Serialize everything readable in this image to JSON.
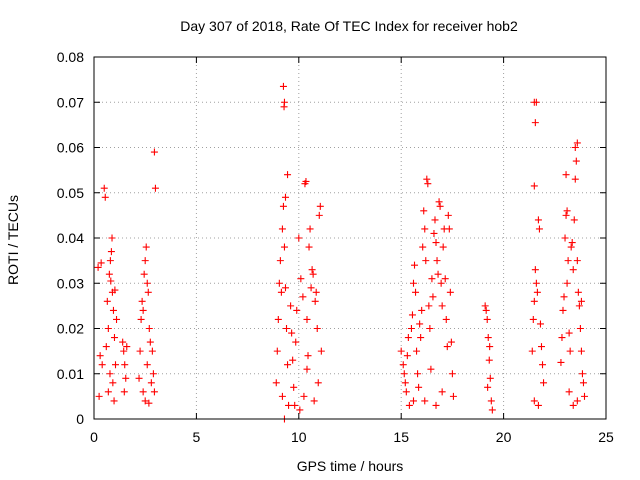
{
  "chart_data": {
    "type": "scatter",
    "title": "Day 307 of 2018, Rate Of TEC Index for receiver hob2",
    "xlabel": "GPS time / hours",
    "ylabel": "ROTI / TECUs",
    "xlim": [
      0,
      25
    ],
    "ylim": [
      0,
      0.08
    ],
    "x_ticks": [
      "0",
      "5",
      "10",
      "15",
      "20",
      "25"
    ],
    "x_tick_values": [
      0,
      5,
      10,
      15,
      20,
      25
    ],
    "y_ticks": [
      "0",
      "0.01",
      "0.02",
      "0.03",
      "0.04",
      "0.05",
      "0.06",
      "0.07",
      "0.08"
    ],
    "y_tick_values": [
      0,
      0.01,
      0.02,
      0.03,
      0.04,
      0.05,
      0.06,
      0.07,
      0.08
    ],
    "grid": true,
    "marker": "+",
    "color": "#ff0000",
    "series": [
      {
        "name": "ROTI",
        "points": [
          [
            0.2,
            0.0335
          ],
          [
            0.35,
            0.0345
          ],
          [
            0.25,
            0.005
          ],
          [
            0.3,
            0.014
          ],
          [
            0.4,
            0.012
          ],
          [
            0.5,
            0.051
          ],
          [
            0.55,
            0.049
          ],
          [
            0.65,
            0.026
          ],
          [
            0.7,
            0.02
          ],
          [
            0.6,
            0.016
          ],
          [
            0.7,
            0.006
          ],
          [
            0.75,
            0.032
          ],
          [
            0.8,
            0.035
          ],
          [
            0.85,
            0.037
          ],
          [
            0.88,
            0.04
          ],
          [
            0.9,
            0.028
          ],
          [
            0.95,
            0.024
          ],
          [
            1.0,
            0.018
          ],
          [
            1.05,
            0.012
          ],
          [
            0.92,
            0.008
          ],
          [
            0.98,
            0.004
          ],
          [
            1.1,
            0.022
          ],
          [
            0.82,
            0.0305
          ],
          [
            1.02,
            0.0285
          ],
          [
            0.78,
            0.01
          ],
          [
            1.4,
            0.017
          ],
          [
            1.45,
            0.015
          ],
          [
            1.5,
            0.012
          ],
          [
            1.55,
            0.009
          ],
          [
            1.6,
            0.016
          ],
          [
            1.48,
            0.006
          ],
          [
            2.2,
            0.009
          ],
          [
            2.25,
            0.015
          ],
          [
            2.3,
            0.022
          ],
          [
            2.35,
            0.026
          ],
          [
            2.4,
            0.024
          ],
          [
            2.45,
            0.032
          ],
          [
            2.5,
            0.035
          ],
          [
            2.55,
            0.038
          ],
          [
            2.6,
            0.03
          ],
          [
            2.65,
            0.028
          ],
          [
            2.7,
            0.02
          ],
          [
            2.4,
            0.006
          ],
          [
            2.5,
            0.004
          ],
          [
            2.6,
            0.012
          ],
          [
            2.75,
            0.017
          ],
          [
            2.85,
            0.015
          ],
          [
            2.9,
            0.01
          ],
          [
            2.95,
            0.006
          ],
          [
            2.8,
            0.008
          ],
          [
            2.68,
            0.0035
          ],
          [
            2.95,
            0.059
          ],
          [
            3.0,
            0.051
          ],
          [
            8.9,
            0.008
          ],
          [
            8.95,
            0.015
          ],
          [
            9.0,
            0.022
          ],
          [
            9.05,
            0.03
          ],
          [
            9.1,
            0.035
          ],
          [
            9.15,
            0.028
          ],
          [
            9.2,
            0.042
          ],
          [
            9.25,
            0.047
          ],
          [
            9.3,
            0.038
          ],
          [
            9.35,
            0.029
          ],
          [
            9.4,
            0.02
          ],
          [
            9.45,
            0.012
          ],
          [
            9.5,
            0.003
          ],
          [
            9.3,
            0.0
          ],
          [
            9.2,
            0.005
          ],
          [
            9.35,
            0.049
          ],
          [
            9.45,
            0.054
          ],
          [
            9.25,
            0.0735
          ],
          [
            9.3,
            0.07
          ],
          [
            9.28,
            0.069
          ],
          [
            9.6,
            0.025
          ],
          [
            9.65,
            0.019
          ],
          [
            9.7,
            0.013
          ],
          [
            9.75,
            0.007
          ],
          [
            9.8,
            0.003
          ],
          [
            9.85,
            0.017
          ],
          [
            9.9,
            0.024
          ],
          [
            10.0,
            0.04
          ],
          [
            10.1,
            0.031
          ],
          [
            10.2,
            0.027
          ],
          [
            10.3,
            0.052
          ],
          [
            10.35,
            0.0525
          ],
          [
            10.4,
            0.022
          ],
          [
            10.45,
            0.014
          ],
          [
            10.5,
            0.038
          ],
          [
            10.55,
            0.042
          ],
          [
            10.6,
            0.029
          ],
          [
            10.65,
            0.033
          ],
          [
            10.7,
            0.032
          ],
          [
            10.8,
            0.026
          ],
          [
            10.85,
            0.028
          ],
          [
            10.9,
            0.02
          ],
          [
            11.0,
            0.045
          ],
          [
            11.05,
            0.047
          ],
          [
            11.1,
            0.015
          ],
          [
            10.95,
            0.008
          ],
          [
            10.75,
            0.004
          ],
          [
            10.25,
            0.005
          ],
          [
            10.05,
            0.002
          ],
          [
            10.4,
            0.011
          ],
          [
            15.0,
            0.015
          ],
          [
            15.1,
            0.012
          ],
          [
            15.15,
            0.01
          ],
          [
            15.2,
            0.008
          ],
          [
            15.25,
            0.006
          ],
          [
            15.3,
            0.014
          ],
          [
            15.35,
            0.018
          ],
          [
            15.4,
            0.003
          ],
          [
            15.5,
            0.02
          ],
          [
            15.55,
            0.023
          ],
          [
            15.6,
            0.03
          ],
          [
            15.65,
            0.034
          ],
          [
            15.7,
            0.028
          ],
          [
            15.75,
            0.015
          ],
          [
            15.8,
            0.01
          ],
          [
            15.85,
            0.007
          ],
          [
            15.9,
            0.021
          ],
          [
            15.95,
            0.018
          ],
          [
            16.0,
            0.024
          ],
          [
            16.05,
            0.038
          ],
          [
            16.1,
            0.046
          ],
          [
            16.15,
            0.042
          ],
          [
            16.2,
            0.035
          ],
          [
            16.25,
            0.053
          ],
          [
            16.3,
            0.052
          ],
          [
            16.35,
            0.025
          ],
          [
            16.4,
            0.02
          ],
          [
            16.45,
            0.011
          ],
          [
            16.5,
            0.031
          ],
          [
            16.55,
            0.027
          ],
          [
            16.6,
            0.041
          ],
          [
            16.65,
            0.044
          ],
          [
            16.7,
            0.039
          ],
          [
            16.75,
            0.035
          ],
          [
            16.8,
            0.032
          ],
          [
            16.85,
            0.048
          ],
          [
            16.9,
            0.047
          ],
          [
            16.95,
            0.03
          ],
          [
            17.0,
            0.025
          ],
          [
            17.05,
            0.038
          ],
          [
            17.1,
            0.042
          ],
          [
            17.15,
            0.031
          ],
          [
            17.2,
            0.022
          ],
          [
            17.25,
            0.016
          ],
          [
            17.3,
            0.045
          ],
          [
            17.35,
            0.042
          ],
          [
            17.4,
            0.028
          ],
          [
            17.45,
            0.017
          ],
          [
            17.5,
            0.01
          ],
          [
            17.55,
            0.005
          ],
          [
            16.15,
            0.004
          ],
          [
            16.7,
            0.003
          ],
          [
            15.6,
            0.004
          ],
          [
            17.0,
            0.006
          ],
          [
            19.1,
            0.025
          ],
          [
            19.15,
            0.024
          ],
          [
            19.2,
            0.022
          ],
          [
            19.25,
            0.018
          ],
          [
            19.3,
            0.013
          ],
          [
            19.35,
            0.009
          ],
          [
            19.4,
            0.004
          ],
          [
            19.45,
            0.002
          ],
          [
            19.22,
            0.007
          ],
          [
            19.32,
            0.016
          ],
          [
            21.4,
            0.015
          ],
          [
            21.45,
            0.022
          ],
          [
            21.5,
            0.026
          ],
          [
            21.55,
            0.033
          ],
          [
            21.6,
            0.03
          ],
          [
            21.65,
            0.028
          ],
          [
            21.7,
            0.044
          ],
          [
            21.75,
            0.042
          ],
          [
            21.8,
            0.021
          ],
          [
            21.85,
            0.016
          ],
          [
            21.9,
            0.012
          ],
          [
            21.95,
            0.008
          ],
          [
            21.5,
            0.004
          ],
          [
            21.7,
            0.003
          ],
          [
            21.5,
            0.0515
          ],
          [
            21.55,
            0.0655
          ],
          [
            21.5,
            0.07
          ],
          [
            21.6,
            0.07
          ],
          [
            22.8,
            0.0125
          ],
          [
            22.85,
            0.018
          ],
          [
            22.9,
            0.024
          ],
          [
            22.95,
            0.027
          ],
          [
            23.0,
            0.04
          ],
          [
            23.05,
            0.045
          ],
          [
            23.1,
            0.046
          ],
          [
            23.05,
            0.054
          ],
          [
            23.15,
            0.035
          ],
          [
            23.2,
            0.019
          ],
          [
            23.25,
            0.015
          ],
          [
            23.3,
            0.038
          ],
          [
            23.35,
            0.039
          ],
          [
            23.4,
            0.033
          ],
          [
            23.45,
            0.044
          ],
          [
            23.5,
            0.053
          ],
          [
            23.55,
            0.057
          ],
          [
            23.5,
            0.06
          ],
          [
            23.6,
            0.061
          ],
          [
            23.65,
            0.028
          ],
          [
            23.7,
            0.025
          ],
          [
            23.75,
            0.02
          ],
          [
            23.8,
            0.015
          ],
          [
            23.85,
            0.01
          ],
          [
            23.9,
            0.008
          ],
          [
            23.95,
            0.005
          ],
          [
            23.4,
            0.003
          ],
          [
            23.6,
            0.004
          ],
          [
            23.2,
            0.006
          ],
          [
            23.8,
            0.026
          ],
          [
            23.1,
            0.03
          ],
          [
            23.6,
            0.035
          ]
        ]
      }
    ]
  }
}
